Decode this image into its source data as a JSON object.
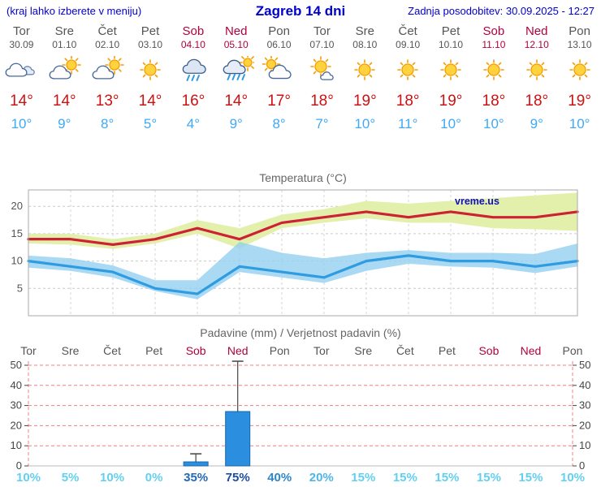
{
  "header": {
    "left": "(kraj lahko izberete v meniju)",
    "title": "Zagreb 14 dni",
    "updated": "Zadnja posodobitev: 30.09.2025 - 12:27"
  },
  "colors": {
    "accent_blue": "#0000cc",
    "weekend_red": "#b00040",
    "weekday_gray": "#555555",
    "high_temp_red": "#cc1111",
    "low_temp_blue": "#3fa9f5",
    "temp_line_red": "#cc2233",
    "temp_line_blue": "#2f9be0",
    "temp_band_green": "#e3f0ab",
    "temp_band_blue": "#93cff0",
    "bar_blue": "#2b8ede",
    "bar_border": "#1668b0",
    "precip_grid_red": "#f08080",
    "watermark_blue": "#1111bb"
  },
  "days": [
    {
      "name": "Tor",
      "date": "30.09",
      "weekend": false,
      "icon": "cloudy",
      "high": "14°",
      "low": "10°"
    },
    {
      "name": "Sre",
      "date": "01.10",
      "weekend": false,
      "icon": "partly",
      "high": "14°",
      "low": "9°"
    },
    {
      "name": "Čet",
      "date": "02.10",
      "weekend": false,
      "icon": "partly",
      "high": "13°",
      "low": "8°"
    },
    {
      "name": "Pet",
      "date": "03.10",
      "weekend": false,
      "icon": "sunny",
      "high": "14°",
      "low": "5°"
    },
    {
      "name": "Sob",
      "date": "04.10",
      "weekend": true,
      "icon": "rain",
      "high": "16°",
      "low": "4°"
    },
    {
      "name": "Ned",
      "date": "05.10",
      "weekend": true,
      "icon": "rain-sun",
      "high": "14°",
      "low": "9°"
    },
    {
      "name": "Pon",
      "date": "06.10",
      "weekend": false,
      "icon": "mostly-cloudy",
      "high": "17°",
      "low": "8°"
    },
    {
      "name": "Tor",
      "date": "07.10",
      "weekend": false,
      "icon": "mostly-sunny",
      "high": "18°",
      "low": "7°"
    },
    {
      "name": "Sre",
      "date": "08.10",
      "weekend": false,
      "icon": "sunny",
      "high": "19°",
      "low": "10°"
    },
    {
      "name": "Čet",
      "date": "09.10",
      "weekend": false,
      "icon": "sunny",
      "high": "18°",
      "low": "11°"
    },
    {
      "name": "Pet",
      "date": "10.10",
      "weekend": false,
      "icon": "sunny",
      "high": "19°",
      "low": "10°"
    },
    {
      "name": "Sob",
      "date": "11.10",
      "weekend": true,
      "icon": "sunny",
      "high": "18°",
      "low": "10°"
    },
    {
      "name": "Ned",
      "date": "12.10",
      "weekend": true,
      "icon": "sunny",
      "high": "18°",
      "low": "9°"
    },
    {
      "name": "Pon",
      "date": "13.10",
      "weekend": false,
      "icon": "sunny",
      "high": "19°",
      "low": "10°"
    }
  ],
  "chart_data": [
    {
      "type": "line",
      "title": "Temperatura (°C)",
      "watermark": "vreme.us",
      "categories": [
        "Tor",
        "Sre",
        "Čet",
        "Pet",
        "Sob",
        "Ned",
        "Pon",
        "Tor",
        "Sre",
        "Čet",
        "Pet",
        "Sob",
        "Ned",
        "Pon"
      ],
      "ylim": [
        0,
        23
      ],
      "yticks": [
        5,
        10,
        15,
        20
      ],
      "grid": true,
      "series": [
        {
          "name": "max temperature",
          "color": "#cc2233",
          "band_color": "#e3f0ab",
          "values": [
            14,
            14,
            13,
            14,
            16,
            14,
            17,
            18,
            19,
            18,
            19,
            18,
            18,
            19
          ],
          "band_upper": [
            15,
            15,
            14,
            15,
            17.5,
            16,
            18.5,
            19.5,
            21,
            20.5,
            21,
            21.5,
            22,
            22.5
          ],
          "band_lower": [
            13.2,
            13,
            12.2,
            13.2,
            15,
            12.3,
            16,
            17,
            17.8,
            17,
            17,
            16,
            15.8,
            15.5
          ]
        },
        {
          "name": "min temperature",
          "color": "#2f9be0",
          "band_color": "#93cff0",
          "values": [
            10,
            9,
            8,
            5,
            4,
            9,
            8,
            7,
            10,
            11,
            10,
            10,
            9,
            10
          ],
          "band_upper": [
            11,
            10.5,
            9.2,
            6.5,
            6.5,
            13.5,
            11.5,
            10.5,
            11.5,
            12,
            11.5,
            11.5,
            11.3,
            13.2
          ],
          "band_lower": [
            8.8,
            8.2,
            7,
            4.5,
            3,
            8,
            7,
            6,
            8.2,
            9.5,
            9,
            8.8,
            7.8,
            9
          ]
        }
      ]
    },
    {
      "type": "bar",
      "title": "Padavine (mm) / Verjetnost padavin (%)",
      "categories": [
        "Tor",
        "Sre",
        "Čet",
        "Pet",
        "Sob",
        "Ned",
        "Pon",
        "Tor",
        "Sre",
        "Čet",
        "Pet",
        "Sob",
        "Ned",
        "Pon"
      ],
      "values": [
        0,
        0,
        0,
        0,
        2,
        27,
        0,
        0,
        0,
        0,
        0,
        0,
        0,
        0
      ],
      "whisker_max": [
        0,
        0,
        0,
        0,
        6,
        52,
        0,
        0,
        0,
        0,
        0,
        0,
        0,
        0
      ],
      "ylim": [
        0,
        52
      ],
      "yticks": [
        0,
        10,
        20,
        30,
        40,
        50
      ],
      "probabilities": [
        {
          "label": "10%",
          "color": "#63d0f0"
        },
        {
          "label": "5%",
          "color": "#63d0f0"
        },
        {
          "label": "10%",
          "color": "#63d0f0"
        },
        {
          "label": "0%",
          "color": "#63d0f0"
        },
        {
          "label": "35%",
          "color": "#2369b4"
        },
        {
          "label": "75%",
          "color": "#1a4fa0"
        },
        {
          "label": "40%",
          "color": "#2e86c8"
        },
        {
          "label": "20%",
          "color": "#4db6e6"
        },
        {
          "label": "15%",
          "color": "#63d0f0"
        },
        {
          "label": "15%",
          "color": "#63d0f0"
        },
        {
          "label": "15%",
          "color": "#63d0f0"
        },
        {
          "label": "15%",
          "color": "#63d0f0"
        },
        {
          "label": "15%",
          "color": "#63d0f0"
        },
        {
          "label": "10%",
          "color": "#63d0f0"
        }
      ]
    }
  ]
}
